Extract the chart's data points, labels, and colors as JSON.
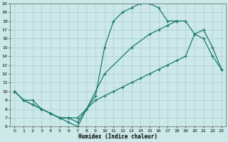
{
  "xlabel": "Humidex (Indice chaleur)",
  "bg_color": "#cce8e8",
  "line_color": "#1a7a6e",
  "grid_color": "#aacece",
  "xlim": [
    -0.5,
    23.5
  ],
  "ylim": [
    6,
    20
  ],
  "xticks": [
    0,
    1,
    2,
    3,
    4,
    5,
    6,
    7,
    8,
    9,
    10,
    11,
    12,
    13,
    14,
    15,
    16,
    17,
    18,
    19,
    20,
    21,
    22,
    23
  ],
  "yticks": [
    6,
    7,
    8,
    9,
    10,
    11,
    12,
    13,
    14,
    15,
    16,
    17,
    18,
    19,
    20
  ],
  "line1_x": [
    0,
    1,
    2,
    3,
    4,
    5,
    6,
    7,
    8,
    9,
    10,
    11,
    12,
    13,
    14,
    15,
    16,
    17,
    18
  ],
  "line1_y": [
    10,
    9,
    9,
    8,
    7.5,
    7,
    6.5,
    6,
    8,
    9.5,
    15,
    18,
    19,
    19.5,
    20,
    20,
    19.5,
    18,
    18
  ],
  "line2_x": [
    0,
    1,
    2,
    3,
    4,
    5,
    6,
    7,
    8,
    9,
    10,
    11,
    12,
    13,
    14,
    15,
    16,
    17,
    18,
    19,
    20,
    21,
    22,
    23
  ],
  "line2_y": [
    10,
    9,
    8.5,
    8,
    7.5,
    7,
    7,
    7,
    8,
    9,
    9.5,
    10,
    10.5,
    11,
    11.5,
    12,
    12.5,
    13,
    13.5,
    14,
    16.5,
    17,
    15,
    12.5
  ],
  "line3_x": [
    0,
    1,
    2,
    3,
    4,
    5,
    6,
    7,
    8,
    10,
    13,
    15,
    16,
    17,
    18,
    19,
    20,
    21,
    22,
    23
  ],
  "line3_y": [
    10,
    9,
    8.5,
    8,
    7.5,
    7,
    7,
    6.5,
    8,
    12,
    15,
    16.5,
    17,
    17.5,
    18,
    18,
    16.5,
    16,
    14,
    12.5
  ]
}
